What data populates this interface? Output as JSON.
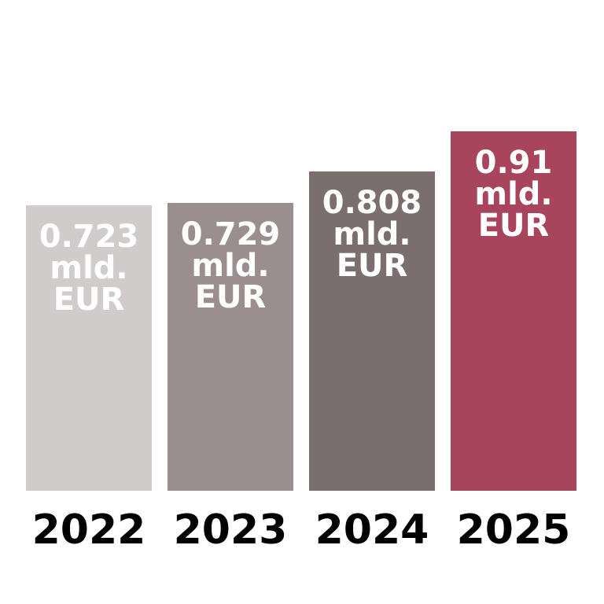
{
  "chart_data": {
    "type": "bar",
    "categories": [
      "2022",
      "2023",
      "2024",
      "2025"
    ],
    "values": [
      0.723,
      0.729,
      0.808,
      0.91
    ],
    "value_labels": [
      "0.723 mld. EUR",
      "0.729 mld. EUR",
      "0.808 mld. EUR",
      "0.91 mld. EUR"
    ],
    "colors": [
      "#d0cccc",
      "#9a8f8e",
      "#7a6f6e",
      "#a8445c"
    ]
  }
}
